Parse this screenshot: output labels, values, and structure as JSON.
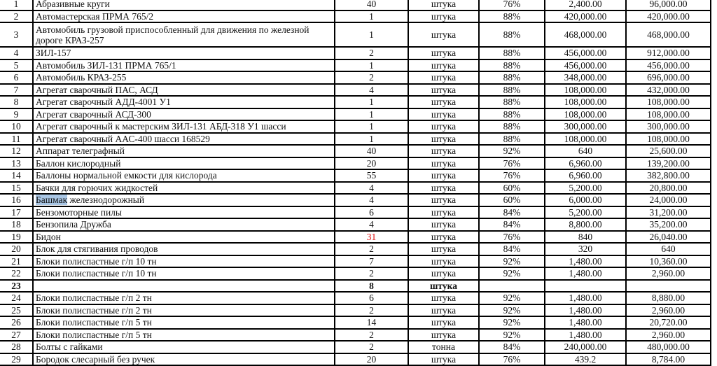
{
  "highlight_color": "#a9c6e4",
  "alert_color": "#e01010",
  "rows": [
    {
      "n": "1",
      "name": "Абразивные круги",
      "qty": "40",
      "unit": "штука",
      "pct": "76%",
      "price": "2,400.00",
      "total": "96,000.00"
    },
    {
      "n": "2",
      "name": "Автомастерская ПРМА 765/2",
      "qty": "1",
      "unit": "штука",
      "pct": "88%",
      "price": "420,000.00",
      "total": "420,000.00"
    },
    {
      "n": "3",
      "name": "Автомобиль грузовой приспособленный для движения по железной дороге КРАЗ-257",
      "qty": "1",
      "unit": "штука",
      "pct": "88%",
      "price": "468,000.00",
      "total": "468,000.00"
    },
    {
      "n": "4",
      "name": "ЗИЛ-157",
      "qty": "2",
      "unit": "штука",
      "pct": "88%",
      "price": "456,000.00",
      "total": "912,000.00"
    },
    {
      "n": "5",
      "name": "Автомобиль ЗИЛ-131 ПРМА 765/1",
      "qty": "1",
      "unit": "штука",
      "pct": "88%",
      "price": "456,000.00",
      "total": "456,000.00"
    },
    {
      "n": "6",
      "name": "Автомобиль КРАЗ-255",
      "qty": "2",
      "unit": "штука",
      "pct": "88%",
      "price": "348,000.00",
      "total": "696,000.00"
    },
    {
      "n": "7",
      "name": "Агрегат сварочный ПАС, АСД",
      "qty": "4",
      "unit": "штука",
      "pct": "88%",
      "price": "108,000.00",
      "total": "432,000.00"
    },
    {
      "n": "8",
      "name": "Агрегат сварочный АДД-4001 У1",
      "qty": "1",
      "unit": "штука",
      "pct": "88%",
      "price": "108,000.00",
      "total": "108,000.00"
    },
    {
      "n": "9",
      "name": "Агрегат сварочный АСД-300",
      "qty": "1",
      "unit": "штука",
      "pct": "88%",
      "price": "108,000.00",
      "total": "108,000.00"
    },
    {
      "n": "10",
      "name": "Агрегат сварочный к мастерским ЗИЛ-131 АБД-318 У1 шасси",
      "qty": "1",
      "unit": "штука",
      "pct": "88%",
      "price": "300,000.00",
      "total": "300,000.00"
    },
    {
      "n": "11",
      "name": "Агрегат сварочный ААС-400 шасси 168529",
      "qty": "1",
      "unit": "штука",
      "pct": "88%",
      "price": "108,000.00",
      "total": "108,000.00"
    },
    {
      "n": "12",
      "name": "Аппарат телеграфный",
      "qty": "40",
      "unit": "штука",
      "pct": "92%",
      "price": "640",
      "total": "25,600.00"
    },
    {
      "n": "13",
      "name": "Баллон кислородный",
      "qty": "20",
      "unit": "штука",
      "pct": "76%",
      "price": "6,960.00",
      "total": "139,200.00"
    },
    {
      "n": "14",
      "name": "Баллоны нормальной емкости для кислорода",
      "qty": "55",
      "unit": "штука",
      "pct": "76%",
      "price": "6,960.00",
      "total": "382,800.00"
    },
    {
      "n": "15",
      "name": "Бачки для горючих жидкостей",
      "qty": "4",
      "unit": "штука",
      "pct": "60%",
      "price": "5,200.00",
      "total": "20,800.00"
    },
    {
      "n": "16",
      "name_hl": "Башмак",
      "name": " железнодорожный",
      "qty": "4",
      "unit": "штука",
      "pct": "60%",
      "price": "6,000.00",
      "total": "24,000.00"
    },
    {
      "n": "17",
      "name": "Бензомоторные пилы",
      "qty": "6",
      "unit": "штука",
      "pct": "84%",
      "price": "5,200.00",
      "total": "31,200.00"
    },
    {
      "n": "18",
      "name": "Бензопила Дружба",
      "qty": "4",
      "unit": "штука",
      "pct": "84%",
      "price": "8,800.00",
      "total": "35,200.00"
    },
    {
      "n": "19",
      "name": "Бидон",
      "qty": "31",
      "qty_red": true,
      "unit": "штука",
      "pct": "76%",
      "price": "840",
      "total": "26,040.00"
    },
    {
      "n": "20",
      "name": "Блок для стягивания проводов",
      "qty": "2",
      "unit": "штука",
      "pct": "84%",
      "price": "320",
      "total": "640"
    },
    {
      "n": "21",
      "name": "Блоки полиспастные г/п 10 тн",
      "qty": "7",
      "unit": "штука",
      "pct": "92%",
      "price": "1,480.00",
      "total": "10,360.00"
    },
    {
      "n": "22",
      "name": "Блоки полиспастные г/п 10 тн",
      "qty": "2",
      "unit": "штука",
      "pct": "92%",
      "price": "1,480.00",
      "total": "2,960.00"
    },
    {
      "n": "23",
      "name": "",
      "qty": "8",
      "unit": "штука",
      "pct": "",
      "price": "",
      "total": "",
      "bold": true
    },
    {
      "n": "24",
      "name": "Блоки полиспастные г/п 2 тн",
      "qty": "6",
      "unit": "штука",
      "pct": "92%",
      "price": "1,480.00",
      "total": "8,880.00"
    },
    {
      "n": "25",
      "name": "Блоки полиспастные г/п 2 тн",
      "qty": "2",
      "unit": "штука",
      "pct": "92%",
      "price": "1,480.00",
      "total": "2,960.00"
    },
    {
      "n": "26",
      "name": "Блоки полиспастные г/п 5 тн",
      "qty": "14",
      "unit": "штука",
      "pct": "92%",
      "price": "1,480.00",
      "total": "20,720.00"
    },
    {
      "n": "27",
      "name": "Блоки полиспастные г/п 5 тн",
      "qty": "2",
      "unit": "штука",
      "pct": "92%",
      "price": "1,480.00",
      "total": "2,960.00"
    },
    {
      "n": "28",
      "name": "Болты с гайками",
      "qty": "2",
      "unit": "тонна",
      "pct": "84%",
      "price": "240,000.00",
      "total": "480,000.00"
    },
    {
      "n": "29",
      "name": "Бородок слесарный без ручек",
      "qty": "20",
      "unit": "штука",
      "pct": "76%",
      "price": "439.2",
      "total": "8,784.00"
    }
  ]
}
